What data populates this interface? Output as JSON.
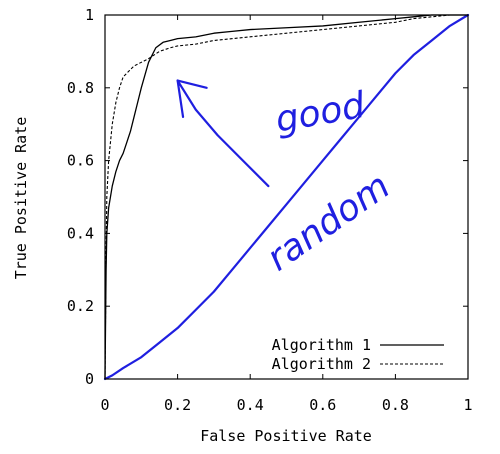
{
  "chart_data": {
    "type": "line",
    "xlabel": "False Positive Rate",
    "ylabel": "True Positive Rate",
    "xlim": [
      0,
      1
    ],
    "ylim": [
      0,
      1
    ],
    "x_ticks": [
      "0",
      "0.2",
      "0.4",
      "0.6",
      "0.8",
      "1"
    ],
    "y_ticks": [
      "0",
      "0.2",
      "0.4",
      "0.6",
      "0.8",
      "1"
    ],
    "grid": false,
    "legend_position": "bottom-right",
    "series": [
      {
        "name": "Algorithm 1",
        "style": "solid",
        "color": "#000000",
        "x": [
          0,
          0.003,
          0.005,
          0.01,
          0.02,
          0.03,
          0.04,
          0.05,
          0.06,
          0.07,
          0.08,
          0.09,
          0.1,
          0.12,
          0.14,
          0.16,
          0.18,
          0.2,
          0.25,
          0.3,
          0.35,
          0.4,
          0.5,
          0.6,
          0.7,
          0.8,
          0.85,
          0.9,
          0.95,
          1
        ],
        "y": [
          0,
          0.3,
          0.4,
          0.47,
          0.53,
          0.57,
          0.6,
          0.62,
          0.65,
          0.68,
          0.72,
          0.76,
          0.8,
          0.87,
          0.91,
          0.925,
          0.93,
          0.935,
          0.94,
          0.95,
          0.955,
          0.96,
          0.965,
          0.97,
          0.98,
          0.99,
          0.995,
          1,
          1,
          1
        ]
      },
      {
        "name": "Algorithm 2",
        "style": "dashed",
        "color": "#000000",
        "x": [
          0,
          0.003,
          0.005,
          0.01,
          0.02,
          0.03,
          0.04,
          0.05,
          0.06,
          0.07,
          0.08,
          0.1,
          0.12,
          0.15,
          0.18,
          0.2,
          0.25,
          0.3,
          0.4,
          0.5,
          0.6,
          0.7,
          0.8,
          0.85,
          0.9,
          0.95,
          1
        ],
        "y": [
          0,
          0.35,
          0.5,
          0.6,
          0.7,
          0.76,
          0.8,
          0.83,
          0.84,
          0.85,
          0.86,
          0.87,
          0.88,
          0.9,
          0.91,
          0.915,
          0.92,
          0.93,
          0.94,
          0.95,
          0.96,
          0.97,
          0.98,
          0.99,
          0.995,
          1,
          1
        ]
      }
    ],
    "annotations": [
      {
        "text": "good",
        "kind": "handwritten",
        "color": "#1f1fe0",
        "arrow": {
          "x": [
            0.45,
            0.38,
            0.31,
            0.25,
            0.2,
            0.215
          ],
          "y": [
            0.53,
            0.6,
            0.67,
            0.74,
            0.82,
            0.72
          ]
        },
        "arrow_head": {
          "x": [
            0.2,
            0.28
          ],
          "y": [
            0.82,
            0.8
          ]
        }
      },
      {
        "text": "random",
        "kind": "handwritten",
        "color": "#1f1fe0",
        "curve": {
          "x": [
            0,
            0.02,
            0.05,
            0.1,
            0.15,
            0.2,
            0.25,
            0.3,
            0.35,
            0.4,
            0.45,
            0.5,
            0.55,
            0.6,
            0.65,
            0.7,
            0.75,
            0.8,
            0.85,
            0.9,
            0.95,
            1
          ],
          "y": [
            0,
            0.01,
            0.03,
            0.06,
            0.1,
            0.14,
            0.19,
            0.24,
            0.3,
            0.36,
            0.42,
            0.48,
            0.54,
            0.6,
            0.66,
            0.72,
            0.78,
            0.84,
            0.89,
            0.93,
            0.97,
            1
          ]
        }
      }
    ]
  }
}
